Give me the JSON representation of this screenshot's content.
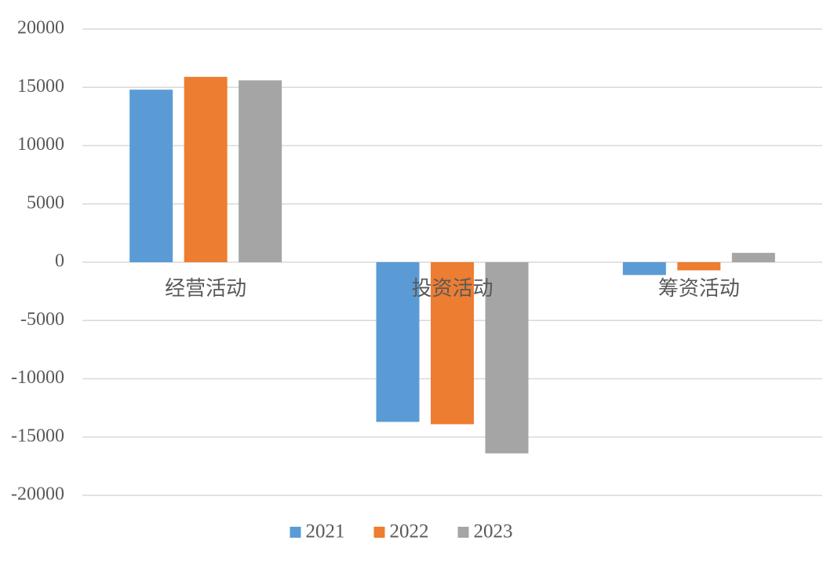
{
  "chart_data": {
    "type": "bar",
    "categories": [
      "经营活动",
      "投资活动",
      "筹资活动"
    ],
    "series": [
      {
        "name": "2021",
        "color": "#5b9bd5",
        "values": [
          14800,
          -13700,
          -1100
        ]
      },
      {
        "name": "2022",
        "color": "#ed7d31",
        "values": [
          15900,
          -13900,
          -700
        ]
      },
      {
        "name": "2023",
        "color": "#a5a5a5",
        "values": [
          15600,
          -16400,
          800
        ]
      }
    ],
    "ylim": [
      -20000,
      20000
    ],
    "yticks": [
      -20000,
      -15000,
      -10000,
      -5000,
      0,
      5000,
      10000,
      15000,
      20000
    ],
    "grid": true,
    "legend": "bottom"
  }
}
